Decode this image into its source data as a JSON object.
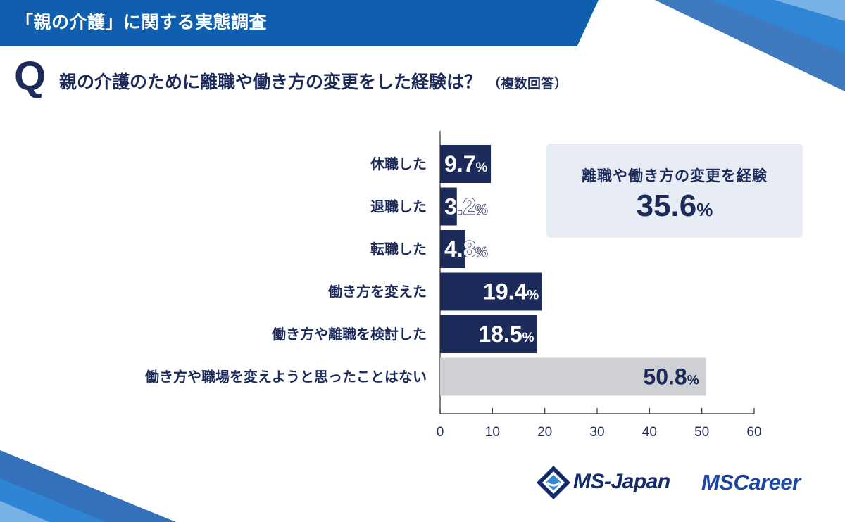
{
  "banner": {
    "title": "「親の介護」に関する実態調査"
  },
  "question": {
    "marker": "Q",
    "text": "親の介護のために離職や働き方の変更をした経験は？",
    "note": "（複数回答）"
  },
  "summary": {
    "label": "離職や働き方の変更を経験",
    "value": "35.6",
    "unit": "%"
  },
  "colors": {
    "primary_bar": "#1d2b5a",
    "none_bar": "#cfd0d4",
    "banner": "#0f5fae",
    "summary_bg": "#e8ecf5"
  },
  "chart_data": {
    "type": "bar",
    "orientation": "horizontal",
    "title": "親の介護のために離職や働き方の変更をした経験は？（複数回答）",
    "xlabel": "",
    "ylabel": "",
    "xlim": [
      0,
      60
    ],
    "x_ticks": [
      0,
      10,
      20,
      30,
      40,
      50,
      60
    ],
    "unit": "%",
    "categories": [
      "休職した",
      "退職した",
      "転職した",
      "働き方を変えた",
      "働き方や離職を検討した",
      "働き方や職場を変えようと思ったことはない"
    ],
    "values": [
      9.7,
      3.2,
      4.8,
      19.4,
      18.5,
      50.8
    ],
    "value_labels": [
      "9.7",
      "3.2",
      "4.8",
      "19.4",
      "18.5",
      "50.8"
    ],
    "bar_style": [
      "primary",
      "primary",
      "primary",
      "primary",
      "primary",
      "none"
    ],
    "grid": false
  },
  "logos": {
    "ms_japan": "MS-Japan",
    "ms_career_ms": "MS",
    "ms_career_word": "Career"
  }
}
